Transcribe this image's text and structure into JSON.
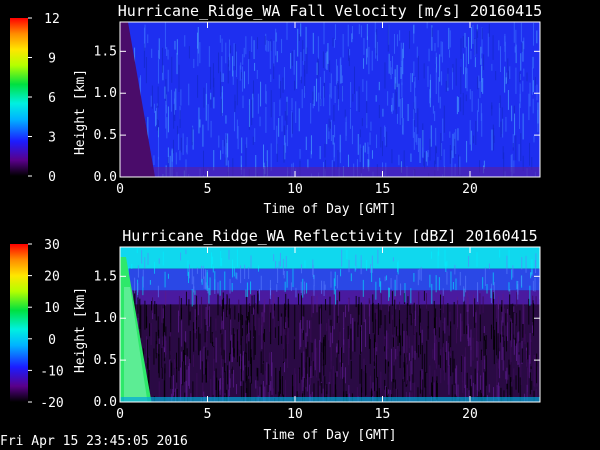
{
  "chart_data": [
    {
      "type": "heatmap",
      "title": "Hurricane_Ridge_WA Fall Velocity [m/s] 20160415",
      "xlabel": "Time of Day [GMT]",
      "ylabel": "Height [km]",
      "xlim": [
        0,
        24
      ],
      "ylim": [
        0,
        1.85
      ],
      "xticks": [
        0,
        5,
        10,
        15,
        20
      ],
      "yticks": [
        0.0,
        0.5,
        1.0,
        1.5
      ],
      "colorbar": {
        "min": 0,
        "max": 12,
        "ticks": [
          0,
          3,
          6,
          9,
          12
        ],
        "palette": "rainbow"
      },
      "field_description": "Fall velocity about 2.5-3.5 m/s (blue) over most of the domain; near 0-1.5 m/s (dark purple) from 0 to ~2 GMT, tapering from full height at 0 to ground near 2 GMT",
      "levels": [
        {
          "time_range": [
            0,
            2
          ],
          "value": 0.8
        },
        {
          "time_range": [
            2,
            24
          ],
          "value": 3.0
        }
      ]
    },
    {
      "type": "heatmap",
      "title": "Hurricane_Ridge_WA Reflectivity [dBZ] 20160415",
      "xlabel": "Time of Day [GMT]",
      "ylabel": "Height [km]",
      "xlim": [
        0,
        24
      ],
      "ylim": [
        0,
        1.85
      ],
      "xticks": [
        0,
        5,
        10,
        15,
        20
      ],
      "yticks": [
        0.0,
        0.5,
        1.0,
        1.5
      ],
      "colorbar": {
        "min": -20,
        "max": 30,
        "ticks": [
          -20,
          -10,
          0,
          10,
          20,
          30
        ],
        "palette": "rainbow"
      },
      "field_description": "Reflectivity about -5 to 0 dBZ (cyan) near the top of the domain; -15 to -20 dBZ (purple/black) below 1.3 km; 5-10 dBZ (green) from 0 to ~1.8 GMT near the ground",
      "levels": [
        {
          "height_range": [
            1.35,
            1.85
          ],
          "value": -3
        },
        {
          "height_range": [
            0,
            1.35
          ],
          "value": -17
        },
        {
          "time_range": [
            0,
            1.8
          ],
          "value": 8
        }
      ]
    }
  ],
  "timestamp": "Fri Apr 15 23:45:05 2016"
}
